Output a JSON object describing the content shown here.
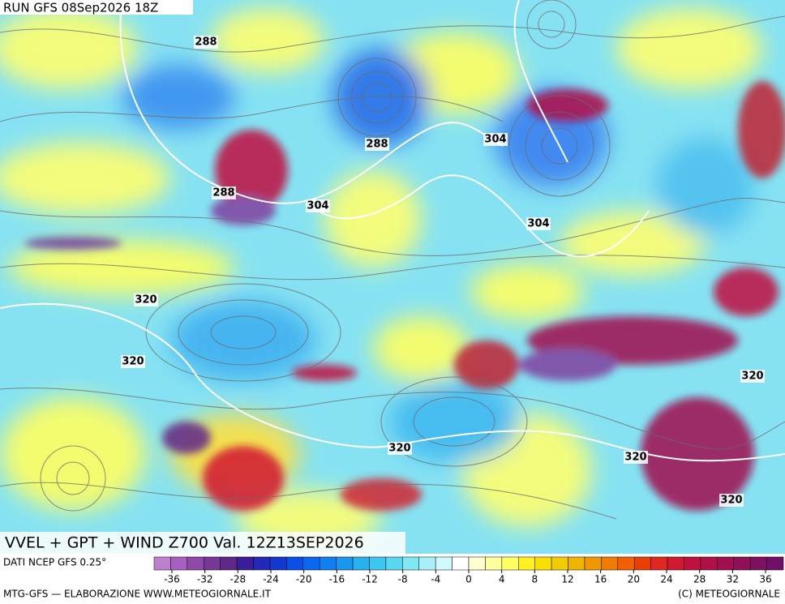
{
  "header": {
    "run": "RUN GFS 08Sep2026 18Z"
  },
  "map": {
    "title": "VVEL + GPT + WIND Z700 Val. 12Z13SEP2026",
    "contour_labels": [
      288,
      288,
      288,
      304,
      304,
      304,
      320,
      320,
      320,
      320,
      320,
      320
    ]
  },
  "legend": {
    "source": "DATI NCEP GFS 0.25°",
    "colors": [
      "#c07ed0",
      "#a860c0",
      "#9048a8",
      "#783898",
      "#602888",
      "#3a1e9a",
      "#2228b8",
      "#1238d0",
      "#0850e8",
      "#0a68f0",
      "#1080f0",
      "#1a98f0",
      "#28b0f0",
      "#3cc8f0",
      "#58d8f0",
      "#80e8f4",
      "#a8f0f8",
      "#d0fafc",
      "#ffffff",
      "#ffffd0",
      "#ffffa0",
      "#ffff60",
      "#fff020",
      "#f8e000",
      "#f0cc00",
      "#f0b400",
      "#f09800",
      "#f07c00",
      "#f06000",
      "#e84000",
      "#e02820",
      "#d01830",
      "#c01040",
      "#b01048",
      "#a01050",
      "#901058",
      "#801060",
      "#701068"
    ],
    "ticks": [
      -36,
      -32,
      -28,
      -24,
      -20,
      -16,
      -12,
      -8,
      -4,
      0,
      4,
      8,
      12,
      16,
      20,
      24,
      28,
      32,
      36
    ]
  },
  "footer": {
    "left": "MTG-GFS — ELABORAZIONE WWW.METEOGIORNALE.IT",
    "right": "(C) METEOGIORNALE"
  }
}
